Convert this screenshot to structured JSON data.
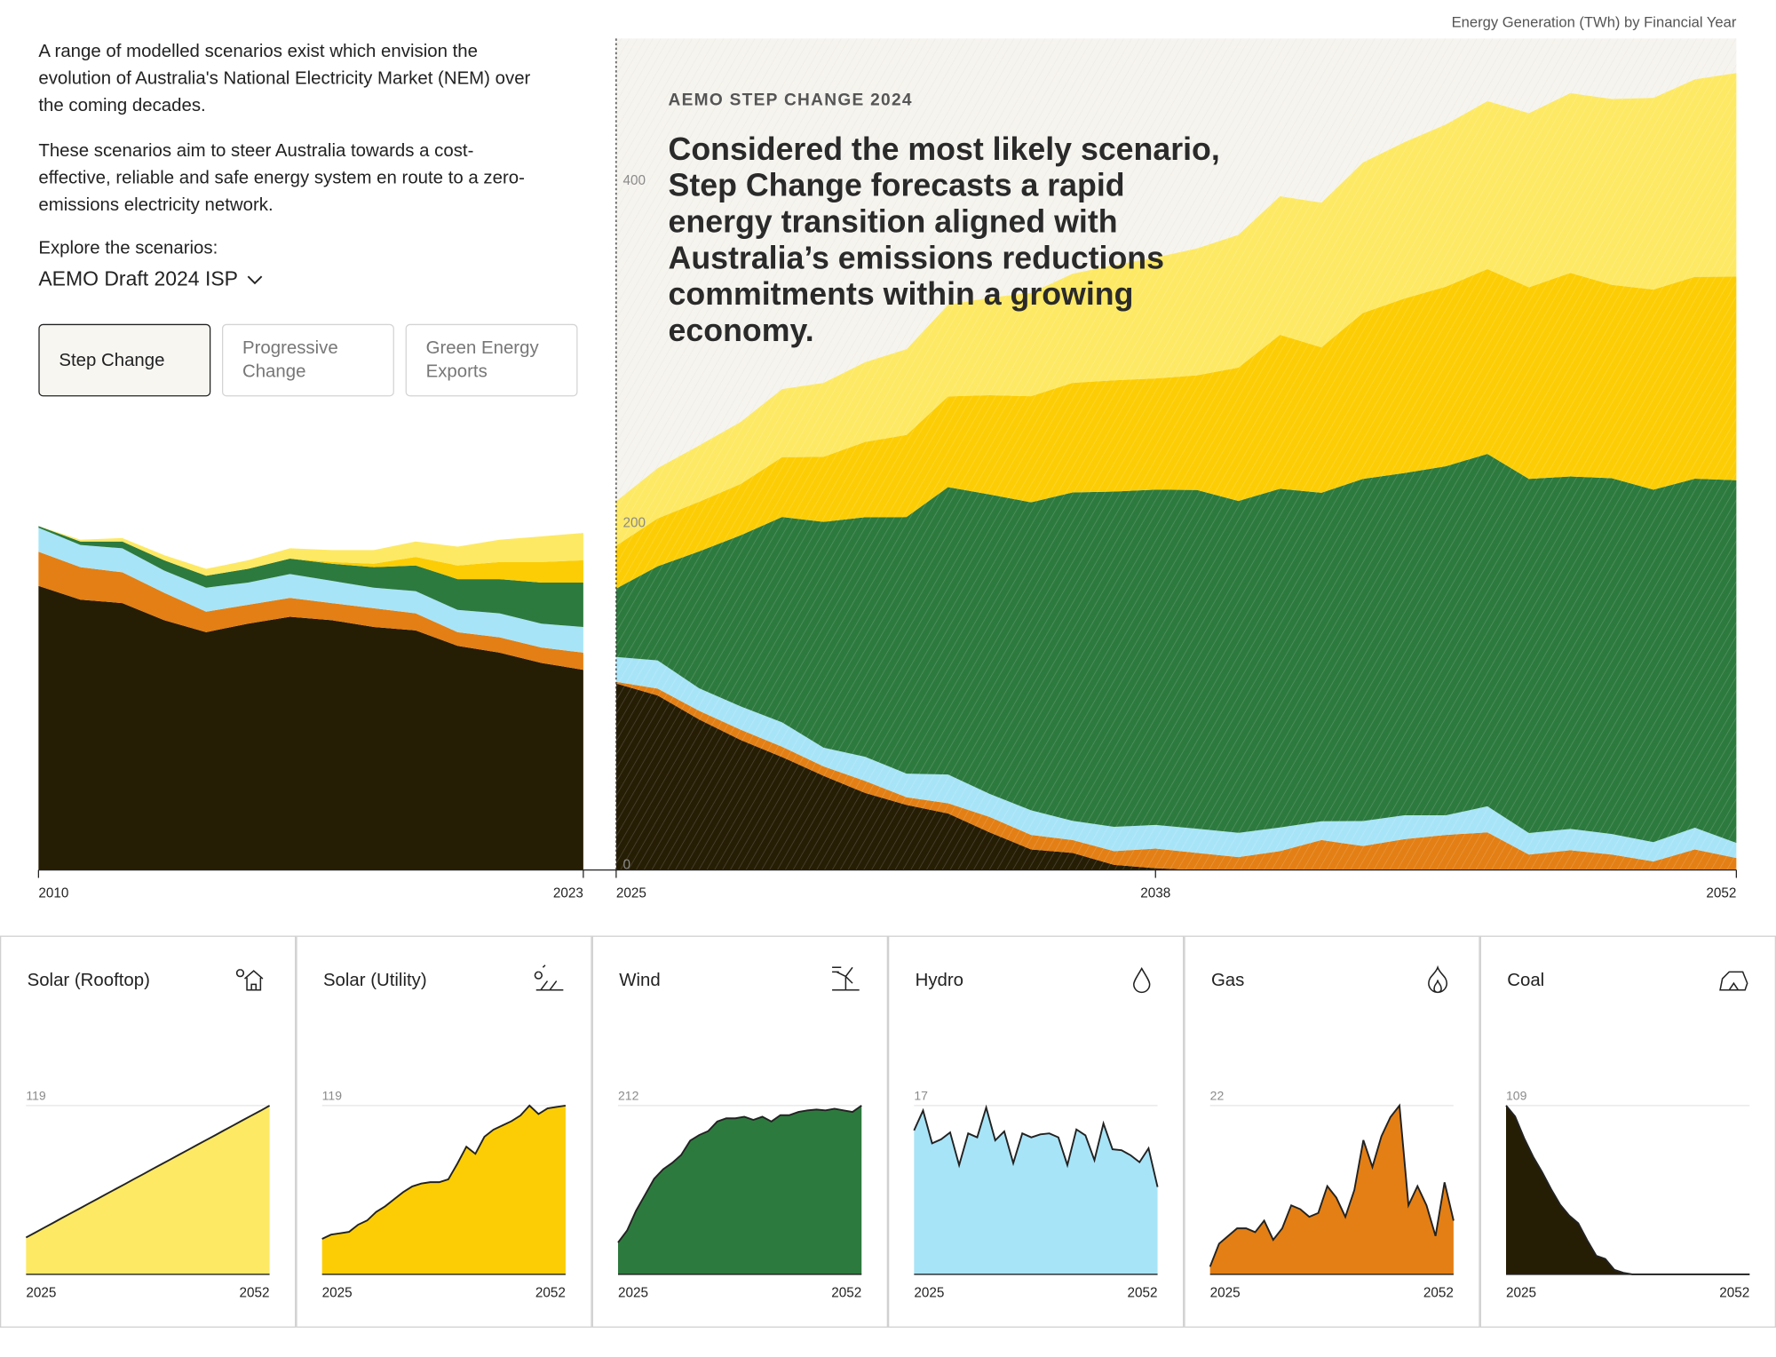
{
  "page": {
    "intro": [
      "A range of modelled scenarios exist which envision the evolution of Australia's National Electricity Market (NEM) over the coming decades.",
      "These scenarios aim to steer Australia towards a cost-effective, reliable and safe energy system en route to a zero-emissions electricity network."
    ],
    "explore_label": "Explore the scenarios:",
    "dataset": "AEMO Draft 2024 ISP",
    "scenarios": [
      "Step Change",
      "Progressive Change",
      "Green Energy Exports"
    ],
    "axis_title": "Energy Generation (TWh) by Financial Year"
  },
  "chart_data": [
    {
      "type": "area",
      "stacked": true,
      "x": [
        2010,
        2011,
        2012,
        2013,
        2014,
        2015,
        2016,
        2017,
        2018,
        2019,
        2020,
        2021,
        2022,
        2023
      ],
      "xlim": [
        2010,
        2023
      ],
      "xticks": [
        2010,
        2023
      ],
      "ylim": [
        0,
        486
      ],
      "series": [
        {
          "color": "#261d05",
          "values": [
            166,
            158,
            156,
            146,
            139,
            144,
            148,
            146,
            142,
            140,
            131,
            127,
            121,
            117
          ]
        },
        {
          "color": "#e37f14",
          "values": [
            20,
            19,
            18,
            16,
            12,
            11,
            11,
            10,
            11,
            10,
            8,
            9,
            9,
            10
          ]
        },
        {
          "color": "#a8e4f8",
          "values": [
            14,
            13,
            14,
            13,
            14,
            13,
            14,
            13,
            12,
            13,
            13,
            14,
            14,
            15
          ]
        },
        {
          "color": "#2d7a3e",
          "values": [
            1,
            2,
            4,
            6,
            7,
            8,
            9,
            10,
            12,
            15,
            18,
            20,
            24,
            26
          ]
        },
        {
          "color": "#fccd05",
          "values": [
            0,
            0,
            0,
            0,
            0,
            0,
            0,
            1,
            2,
            5,
            8,
            10,
            12,
            13
          ]
        },
        {
          "color": "#fde964",
          "values": [
            0,
            1,
            2,
            3,
            4,
            5,
            6,
            7,
            8,
            9,
            11,
            13,
            15,
            16
          ]
        }
      ]
    },
    {
      "type": "area",
      "stacked": true,
      "kicker": "AEMO STEP CHANGE 2024",
      "annotation": "Considered the most likely scenario, Step Change forecasts a rapid energy transition aligned with Australia’s emissions reductions commitments within a growing economy.",
      "x": [
        2025,
        2026,
        2027,
        2028,
        2029,
        2030,
        2031,
        2032,
        2033,
        2034,
        2035,
        2036,
        2037,
        2038,
        2039,
        2040,
        2041,
        2042,
        2043,
        2044,
        2045,
        2046,
        2047,
        2048,
        2049,
        2050,
        2051,
        2052
      ],
      "xlim": [
        2025,
        2052
      ],
      "xticks": [
        2025,
        2038,
        2052
      ],
      "ylim": [
        0,
        486
      ],
      "yticks": [
        0,
        200,
        400
      ],
      "series": [
        {
          "name": "Coal",
          "color": "#261d05",
          "panel_ylim": [
            0,
            109
          ],
          "panel_yticks": [
            109
          ],
          "values": [
            109,
            102,
            88,
            76,
            66,
            55,
            45,
            38,
            33,
            22,
            12,
            10,
            3,
            1,
            0,
            0,
            0,
            0,
            0,
            0,
            0,
            0,
            0,
            0,
            0,
            0,
            0,
            0
          ]
        },
        {
          "name": "Gas",
          "color": "#e37f14",
          "panel_ylim": [
            0,
            22
          ],
          "panel_yticks": [
            22
          ],
          "values": [
            1,
            4,
            5,
            6,
            6,
            5.5,
            7,
            4.5,
            6,
            9,
            8.5,
            7.5,
            8,
            11.5,
            10,
            7.5,
            11,
            17.5,
            14,
            18,
            20.5,
            22,
            9,
            11.5,
            9,
            5,
            12,
            7
          ]
        },
        {
          "name": "Hydro",
          "color": "#a8e4f8",
          "panel_ylim": [
            0,
            17
          ],
          "panel_yticks": [
            17
          ],
          "values": [
            14.5,
            16.5,
            13.2,
            13.6,
            14.3,
            11,
            14.2,
            13.8,
            16.8,
            13.5,
            14.4,
            11.2,
            14.2,
            13.8,
            14.1,
            14.2,
            13.8,
            11,
            14.6,
            14,
            11.5,
            15.2,
            12.6,
            12.5,
            12,
            11.3,
            12.7,
            8.8
          ]
        },
        {
          "name": "Wind",
          "color": "#2d7a3e",
          "panel_ylim": [
            0,
            212
          ],
          "panel_yticks": [
            212
          ],
          "values": [
            40,
            55,
            80,
            100,
            120,
            132,
            140,
            150,
            168,
            175,
            180,
            192,
            196,
            196,
            198,
            194,
            198,
            192,
            200,
            200,
            204,
            206,
            207,
            206,
            208,
            206,
            204,
            212
          ]
        },
        {
          "name": "Solar (Utility)",
          "color": "#fccd05",
          "panel_ylim": [
            0,
            119
          ],
          "panel_yticks": [
            119
          ],
          "values": [
            25,
            28,
            29,
            30,
            35,
            38,
            44,
            48,
            53,
            58,
            62,
            64,
            65,
            65,
            67,
            78,
            90,
            85,
            97,
            102,
            105,
            108,
            112,
            119,
            113,
            117,
            118,
            119
          ]
        },
        {
          "name": "Solar (Rooftop)",
          "color": "#fde964",
          "panel_ylim": [
            0,
            119
          ],
          "panel_yticks": [
            119
          ],
          "values": [
            26,
            29.4,
            32.9,
            36.3,
            39.8,
            43.2,
            46.6,
            50.1,
            53.5,
            57,
            60.4,
            63.8,
            67.3,
            70.7,
            74.2,
            77.6,
            81,
            84.5,
            87.9,
            91.4,
            94.8,
            98.2,
            101.7,
            105.1,
            108.6,
            112,
            115.4,
            119
          ]
        }
      ]
    }
  ]
}
